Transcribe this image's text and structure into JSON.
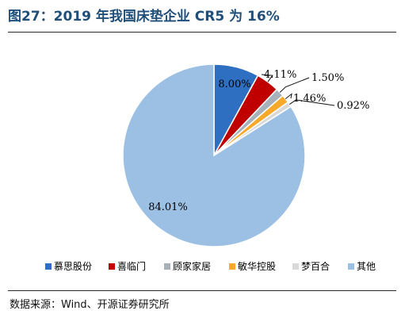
{
  "header": {
    "title": "图27：2019 年我国床垫企业 CR5 为 16%"
  },
  "footer": {
    "source": "数据来源：Wind、开源证券研究所"
  },
  "chart_data": {
    "type": "pie",
    "title": "图27：2019 年我国床垫企业 CR5 为 16%",
    "categories": [
      "慕思股份",
      "喜临门",
      "顾家家居",
      "敏华控股",
      "梦百合",
      "其他"
    ],
    "values": [
      8.0,
      4.11,
      1.5,
      1.46,
      0.92,
      84.01
    ],
    "labels": [
      "8.00%",
      "4.11%",
      "1.50%",
      "1.46%",
      "0.92%",
      "84.01%"
    ],
    "colors": [
      "#2e6fc1",
      "#c00000",
      "#a7b1ba",
      "#f6a92a",
      "#d9d9d9",
      "#9cc0e4"
    ],
    "legend_position": "bottom",
    "start_angle": "12 o'clock, clockwise"
  }
}
